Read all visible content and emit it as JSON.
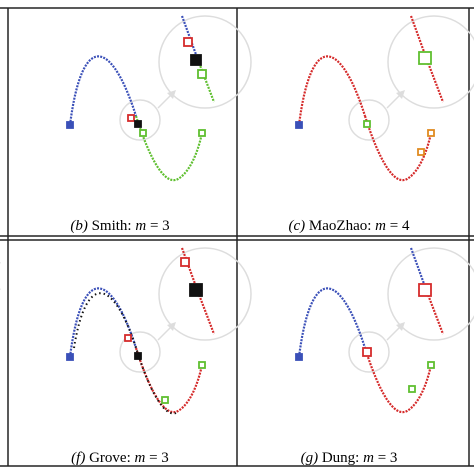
{
  "panels": [
    {
      "tag": "(b)",
      "method": "Smith:",
      "variable": "m",
      "equals": "= 3"
    },
    {
      "tag": "(c)",
      "method": "MaoZhao:",
      "variable": "m",
      "equals": "= 4"
    },
    {
      "tag": "(f)",
      "method": "Grove:",
      "variable": "m",
      "equals": "= 3"
    },
    {
      "tag": "(g)",
      "method": "Dung:",
      "variable": "m",
      "equals": "= 3"
    }
  ]
}
